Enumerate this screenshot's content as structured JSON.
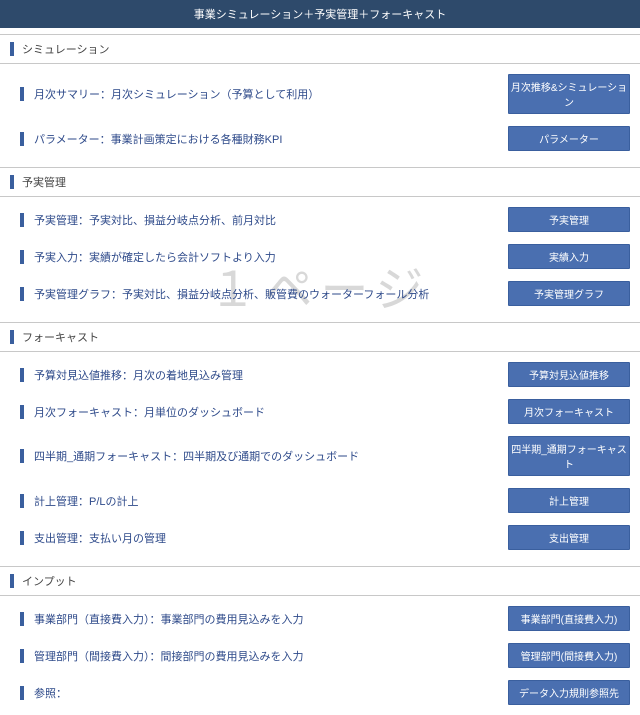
{
  "header": {
    "title": "事業シミュレーション＋予実管理＋フォーキャスト"
  },
  "watermark": "１ページ",
  "sections": [
    {
      "title": "シミュレーション",
      "rows": [
        {
          "label": "月次サマリー：月次シミュレーション（予算として利用）",
          "button": "月次推移&シミュレーション"
        },
        {
          "label": "パラメーター：事業計画策定における各種財務KPI",
          "button": "パラメーター"
        }
      ]
    },
    {
      "title": "予実管理",
      "rows": [
        {
          "label": "予実管理：予実対比、損益分岐点分析、前月対比",
          "button": "予実管理"
        },
        {
          "label": "予実入力：実績が確定したら会計ソフトより入力",
          "button": "実績入力"
        },
        {
          "label": "予実管理グラフ：予実対比、損益分岐点分析、販管費のウォーターフォール分析",
          "button": "予実管理グラフ"
        }
      ]
    },
    {
      "title": "フォーキャスト",
      "rows": [
        {
          "label": "予算対見込値推移：月次の着地見込み管理",
          "button": "予算対見込値推移"
        },
        {
          "label": "月次フォーキャスト：月単位のダッシュボード",
          "button": "月次フォーキャスト"
        },
        {
          "label": "四半期_通期フォーキャスト：四半期及び通期でのダッシュボード",
          "button": "四半期_通期フォーキャスト"
        },
        {
          "label": "計上管理：P/Lの計上",
          "button": "計上管理"
        },
        {
          "label": "支出管理：支払い月の管理",
          "button": "支出管理"
        }
      ]
    },
    {
      "title": "インプット",
      "rows": [
        {
          "label": "事業部門（直接費入力）：事業部門の費用見込みを入力",
          "button": "事業部門(直接費入力)"
        },
        {
          "label": "管理部門（間接費入力）：間接部門の費用見込みを入力",
          "button": "管理部門(間接費入力)"
        },
        {
          "label": "参照：",
          "button": "データ入力規則参照先"
        }
      ]
    }
  ]
}
